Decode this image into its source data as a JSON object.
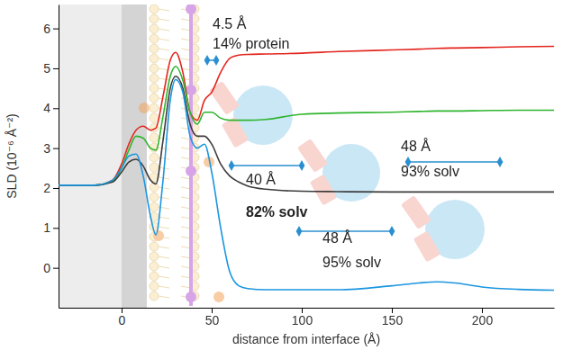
{
  "chart_data": {
    "type": "line",
    "x_label": "distance from interface (Å)",
    "y_label": "SLD (10⁻⁶ Å⁻²)",
    "xlim": [
      -35,
      240
    ],
    "ylim": [
      -1,
      6.6
    ],
    "xticks": [
      0,
      50,
      100,
      150,
      200
    ],
    "yticks": [
      0,
      1,
      2,
      3,
      4,
      5,
      6
    ],
    "bands": [
      [
        -35,
        0
      ],
      [
        0,
        14
      ]
    ],
    "x": [
      -35,
      -15,
      -5,
      0,
      4,
      8,
      12,
      16,
      19,
      23,
      27,
      30,
      34,
      38,
      42,
      46,
      50,
      55,
      60,
      65,
      70,
      80,
      100,
      120,
      150,
      165,
      175,
      185,
      200,
      220,
      240
    ],
    "series": [
      {
        "color": "#e3261f",
        "values": [
          2.07,
          2.07,
          2.2,
          2.6,
          3.1,
          3.45,
          3.55,
          3.45,
          3.5,
          4.3,
          5.2,
          5.4,
          4.9,
          3.9,
          3.7,
          4.2,
          4.4,
          4.9,
          5.25,
          5.33,
          5.35,
          5.36,
          5.38,
          5.42,
          5.46,
          5.48,
          5.5,
          5.51,
          5.52,
          5.54,
          5.55
        ]
      },
      {
        "color": "#2fb52f",
        "values": [
          2.07,
          2.07,
          2.18,
          2.5,
          2.95,
          3.3,
          3.25,
          3.0,
          2.95,
          3.8,
          4.8,
          5.05,
          4.7,
          3.9,
          3.6,
          3.9,
          3.9,
          3.75,
          3.7,
          3.7,
          3.7,
          3.72,
          3.85,
          3.88,
          3.9,
          3.92,
          3.93,
          3.93,
          3.94,
          3.95,
          3.95
        ]
      },
      {
        "color": "#3c3c3c",
        "values": [
          2.07,
          2.07,
          2.15,
          2.4,
          2.65,
          2.72,
          2.55,
          2.2,
          2.1,
          3.2,
          4.5,
          4.8,
          4.5,
          3.6,
          3.3,
          3.3,
          3.1,
          2.6,
          2.3,
          2.15,
          2.05,
          1.97,
          1.92,
          1.91,
          1.9,
          1.9,
          1.9,
          1.9,
          1.9,
          1.9,
          1.9
        ]
      },
      {
        "color": "#1c96e0",
        "values": [
          2.07,
          2.07,
          2.2,
          2.5,
          2.8,
          2.85,
          2.3,
          1.3,
          0.83,
          2.2,
          4.2,
          4.72,
          4.4,
          3.3,
          3.0,
          3.1,
          2.4,
          1.0,
          -0.1,
          -0.45,
          -0.52,
          -0.55,
          -0.55,
          -0.55,
          -0.45,
          -0.38,
          -0.35,
          -0.38,
          -0.48,
          -0.54,
          -0.56
        ]
      }
    ],
    "annotations": [
      "4.5 Å",
      "14% protein",
      "40 Å",
      "82% solv",
      "48 Å",
      "93% solv",
      "48 Å",
      "95% solv"
    ]
  }
}
